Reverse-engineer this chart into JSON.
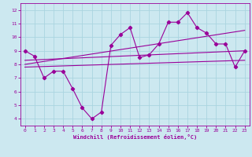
{
  "xlabel": "Windchill (Refroidissement éolien,°C)",
  "bg_color": "#cce8f0",
  "line_color": "#990099",
  "grid_color": "#aad4e0",
  "xlim": [
    -0.5,
    23.5
  ],
  "ylim": [
    3.5,
    12.5
  ],
  "xticks": [
    0,
    1,
    2,
    3,
    4,
    5,
    6,
    7,
    8,
    9,
    10,
    11,
    12,
    13,
    14,
    15,
    16,
    17,
    18,
    19,
    20,
    21,
    22,
    23
  ],
  "yticks": [
    4,
    5,
    6,
    7,
    8,
    9,
    10,
    11,
    12
  ],
  "line1_x": [
    0,
    1,
    2,
    3,
    4,
    5,
    6,
    7,
    8,
    9,
    10,
    11,
    12,
    13,
    14,
    15,
    16,
    17,
    18,
    19,
    20,
    21,
    22,
    23
  ],
  "line1_y": [
    9.0,
    8.6,
    7.0,
    7.5,
    7.5,
    6.2,
    4.8,
    4.0,
    4.5,
    9.4,
    10.2,
    10.7,
    8.5,
    8.7,
    9.5,
    11.1,
    11.1,
    11.8,
    10.7,
    10.3,
    9.5,
    9.5,
    7.8,
    9.0
  ],
  "line2_x": [
    0,
    23
  ],
  "line2_y": [
    8.0,
    10.5
  ],
  "line3_x": [
    0,
    23
  ],
  "line3_y": [
    8.3,
    9.0
  ],
  "line4_x": [
    0,
    23
  ],
  "line4_y": [
    7.8,
    8.3
  ]
}
